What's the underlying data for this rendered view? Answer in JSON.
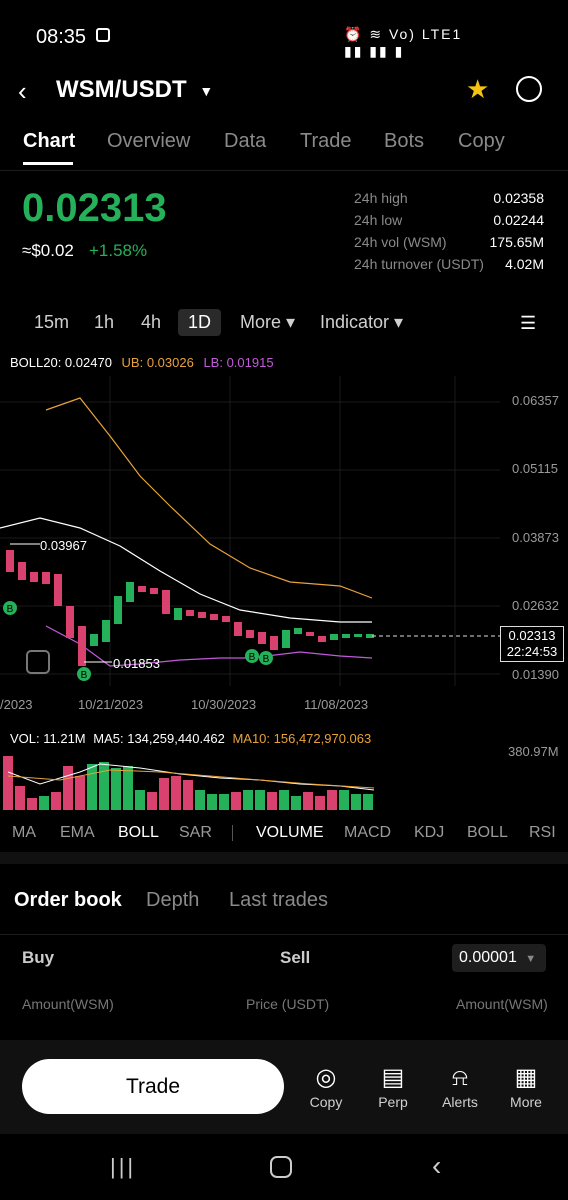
{
  "status": {
    "time": "08:35",
    "icons": "⏰ ≋ Vo) LTE1 ▮▮ ▮▮ ▮"
  },
  "header": {
    "pair": "WSM/USDT"
  },
  "tabs": [
    "Chart",
    "Overview",
    "Data",
    "Trade",
    "Bots",
    "Copy"
  ],
  "ticker": {
    "price": "0.02313",
    "usd": "≈$0.02",
    "change": "+1.58%"
  },
  "stats": [
    {
      "label": "24h high",
      "value": "0.02358"
    },
    {
      "label": "24h low",
      "value": "0.02244"
    },
    {
      "label": "24h vol (WSM)",
      "value": "175.65M"
    },
    {
      "label": "24h turnover (USDT)",
      "value": "4.02M"
    }
  ],
  "intervals": [
    "15m",
    "1h",
    "4h",
    "1D",
    "More ▾",
    "Indicator ▾"
  ],
  "boll": {
    "main": "BOLL20: 0.02470",
    "ub": "UB: 0.03026",
    "lb": "LB: 0.01915"
  },
  "chart_data": {
    "type": "candlestick",
    "y_ticks": [
      "0.06357",
      "0.05115",
      "0.03873",
      "0.02632",
      "0.01390"
    ],
    "x_ticks": [
      "/2023",
      "10/21/2023",
      "10/30/2023",
      "11/08/2023"
    ],
    "annotations": {
      "high": "0.03967",
      "low": "0.01853",
      "markers": [
        "B",
        "B",
        "B",
        "B"
      ]
    },
    "last_price": "0.02313",
    "countdown": "22:24:53"
  },
  "volume": {
    "vol": "VOL: 11.21M",
    "ma5": "MA5: 134,259,440.462",
    "ma10": "MA10: 156,472,970.063",
    "max": "380.97M"
  },
  "indicators": [
    "MA",
    "EMA",
    "BOLL",
    "SAR",
    "VOLUME",
    "MACD",
    "KDJ",
    "BOLL",
    "RSI"
  ],
  "orderbook": {
    "tabs": [
      "Order book",
      "Depth",
      "Last trades"
    ],
    "buy": "Buy",
    "sell": "Sell",
    "precision": "0.00001",
    "cols": [
      "Amount(WSM)",
      "Price (USDT)",
      "Amount(WSM)"
    ]
  },
  "bottom": {
    "trade": "Trade",
    "items": [
      "Copy",
      "Perp",
      "Alerts",
      "More"
    ]
  },
  "colors": {
    "up": "#25b05a",
    "down": "#d9426e",
    "ub": "#e8a23a",
    "lb": "#c25ad9",
    "mid": "#ffffff"
  }
}
